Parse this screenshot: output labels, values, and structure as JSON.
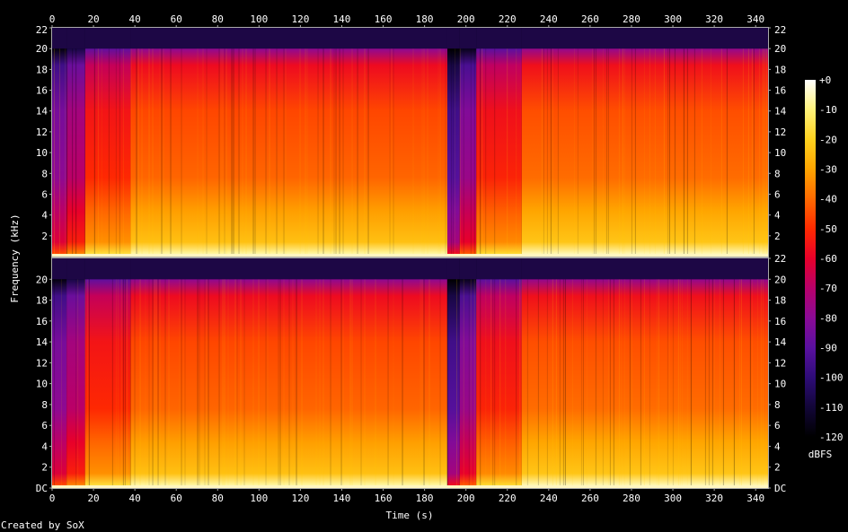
{
  "chart_data": {
    "type": "heatmap",
    "title": "",
    "xlabel": "Time (s)",
    "ylabel": "Frequency (kHz)",
    "xlim": [
      0,
      346
    ],
    "ylim": [
      0,
      22
    ],
    "x_ticks": [
      0,
      20,
      40,
      60,
      80,
      100,
      120,
      140,
      160,
      180,
      200,
      220,
      240,
      260,
      280,
      300,
      320,
      340
    ],
    "channels": [
      {
        "y_ticks": [
          "2",
          "4",
          "6",
          "8",
          "10",
          "12",
          "14",
          "16",
          "18",
          "20",
          "22"
        ],
        "right_ticks": [
          "2",
          "4",
          "6",
          "8",
          "10",
          "12",
          "14",
          "16",
          "18",
          "20",
          "22"
        ]
      },
      {
        "y_ticks": [
          "DC",
          "2",
          "4",
          "6",
          "8",
          "10",
          "12",
          "14",
          "16",
          "18",
          "20"
        ],
        "right_ticks": [
          "DC",
          "2",
          "4",
          "6",
          "8",
          "10",
          "12",
          "14",
          "16",
          "18",
          "20",
          "22"
        ]
      }
    ],
    "colorbar": {
      "label": "dBFS",
      "ticks": [
        "+0",
        "-10",
        "-20",
        "-30",
        "-40",
        "-50",
        "-60",
        "-70",
        "-80",
        "-90",
        "-100",
        "-110",
        "-120"
      ],
      "colors": [
        "#ffffff",
        "#fff27a",
        "#ffd21e",
        "#ffa500",
        "#ff6a00",
        "#ff2a00",
        "#e8002a",
        "#b8006a",
        "#8a0a96",
        "#5a10a0",
        "#2e0c78",
        "#120638",
        "#000000"
      ]
    },
    "segments": [
      {
        "t0": 0,
        "t1": 7,
        "top_khz": 20,
        "level": 0.32
      },
      {
        "t0": 7,
        "t1": 16,
        "top_khz": 20,
        "level": 0.4
      },
      {
        "t0": 16,
        "t1": 38,
        "top_khz": 20,
        "level": 0.56
      },
      {
        "t0": 38,
        "t1": 191,
        "top_khz": 20,
        "level": 0.64
      },
      {
        "t0": 191,
        "t1": 197,
        "top_khz": 20,
        "level": 0.22
      },
      {
        "t0": 197,
        "t1": 205,
        "top_khz": 20,
        "level": 0.34
      },
      {
        "t0": 205,
        "t1": 227,
        "top_khz": 20,
        "level": 0.55
      },
      {
        "t0": 227,
        "t1": 346,
        "top_khz": 20,
        "level": 0.65
      }
    ]
  },
  "footer": {
    "credit": "Created by SoX"
  }
}
